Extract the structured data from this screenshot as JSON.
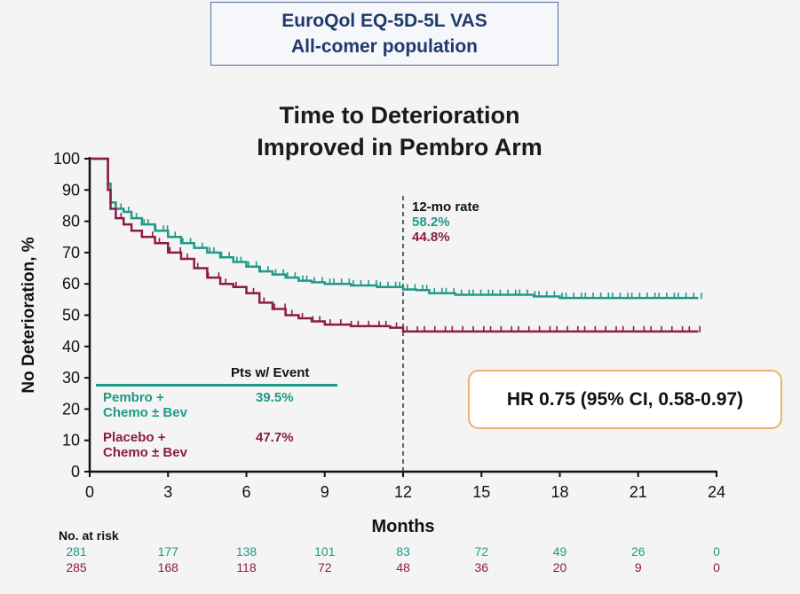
{
  "header": {
    "line1": "EuroQol EQ-5D-5L VAS",
    "line2": "All-comer population"
  },
  "chart_title": {
    "line1": "Time to Deterioration",
    "line2": "Improved in Pembro Arm"
  },
  "legend": {
    "header": "Pts w/ Event",
    "entries": [
      {
        "label_line1": "Pembro +",
        "label_line2": "Chemo ± Bev",
        "value": "39.5%",
        "color": "#1e9a86"
      },
      {
        "label_line1": "Placebo +",
        "label_line2": "Chemo ± Bev",
        "value": "47.7%",
        "color": "#8b1c45"
      }
    ]
  },
  "rate_annotation": {
    "title": "12-mo rate",
    "pembro": "58.2%",
    "placebo": "44.8%"
  },
  "hr_box": "HR 0.75 (95% CI, 0.58-0.97)",
  "risk_table": {
    "title": "No. at risk",
    "pembro": [
      "281",
      "177",
      "138",
      "101",
      "83",
      "72",
      "49",
      "26",
      "0"
    ],
    "placebo": [
      "285",
      "168",
      "118",
      "72",
      "48",
      "36",
      "20",
      "9",
      "0"
    ]
  },
  "chart_data": {
    "type": "line",
    "subtype": "kaplan-meier",
    "xlabel": "Months",
    "ylabel": "No Deterioration, %",
    "xlim": [
      0,
      24
    ],
    "ylim": [
      0,
      100
    ],
    "xticks": [
      0,
      3,
      6,
      9,
      12,
      15,
      18,
      21,
      24
    ],
    "yticks": [
      0,
      10,
      20,
      30,
      40,
      50,
      60,
      70,
      80,
      90,
      100
    ],
    "reference_line_x": 12,
    "series": [
      {
        "name": "Pembro + Chemo ± Bev",
        "color": "#1e9a86",
        "x": [
          0,
          0.6,
          0.7,
          0.8,
          1.0,
          1.3,
          1.6,
          2.0,
          2.5,
          3.0,
          3.5,
          4.0,
          4.5,
          5.0,
          5.5,
          6.0,
          6.5,
          7.0,
          7.5,
          8.0,
          8.5,
          9.0,
          10.0,
          11.0,
          12.0,
          12.5,
          13.0,
          14.0,
          16.0,
          17.0,
          18.0,
          20.0,
          23.3
        ],
        "y": [
          100,
          100,
          92,
          86,
          84,
          83,
          81,
          79,
          77,
          75,
          73,
          71.5,
          70,
          68.5,
          67,
          65.5,
          64,
          63,
          62,
          61,
          60.5,
          60,
          59.5,
          59,
          58.2,
          58,
          57,
          56.5,
          56.5,
          56,
          55.5,
          55.5,
          55.5
        ]
      },
      {
        "name": "Placebo + Chemo ± Bev",
        "color": "#8b1c45",
        "x": [
          0,
          0.6,
          0.7,
          0.8,
          1.0,
          1.3,
          1.6,
          2.0,
          2.5,
          3.0,
          3.5,
          4.0,
          4.5,
          5.0,
          5.5,
          6.0,
          6.5,
          7.0,
          7.5,
          8.0,
          8.5,
          9.0,
          10.0,
          11.0,
          11.5,
          12.0,
          13.0,
          16.0,
          20.0,
          23.3
        ],
        "y": [
          100,
          100,
          90,
          84,
          81,
          79,
          77,
          75,
          73,
          70,
          68,
          65,
          62,
          60,
          59,
          57,
          54,
          52,
          50,
          49,
          48,
          47,
          46.5,
          46.5,
          46,
          44.8,
          44.8,
          44.8,
          44.8,
          44.8
        ]
      }
    ]
  }
}
